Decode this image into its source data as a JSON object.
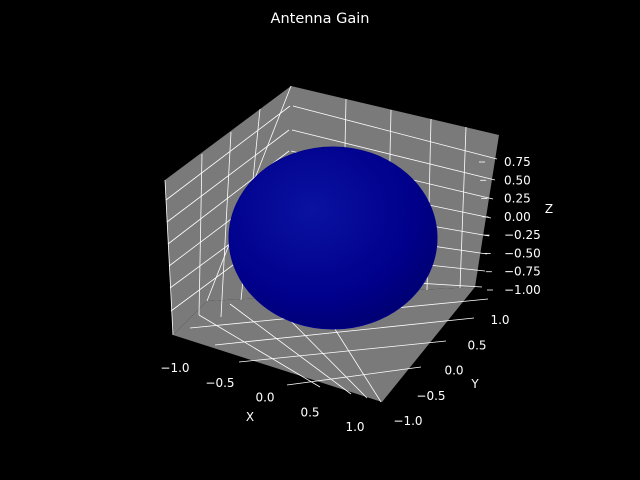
{
  "chart_data": {
    "type": "surface3d",
    "title": "Antenna Gain",
    "xlabel": "X",
    "ylabel": "Y",
    "zlabel": "Z",
    "xlim": [
      -1.0,
      1.0
    ],
    "ylim": [
      -1.0,
      1.0
    ],
    "zlim": [
      -1.0,
      0.75
    ],
    "x_ticks": [
      "−1.0",
      "−0.5",
      "0.0",
      "0.5",
      "1.0"
    ],
    "y_ticks": [
      "−1.0",
      "−0.5",
      "0.0",
      "0.5",
      "1.0"
    ],
    "z_ticks": [
      "−1.00",
      "−0.75",
      "−0.50",
      "−0.25",
      "0.00",
      "0.25",
      "0.50",
      "0.75"
    ],
    "surface": {
      "shape": "sphere",
      "radius": 1.0,
      "color": "#00008b"
    },
    "grid": true,
    "background": "#000000",
    "pane_color": "#7a7a7a",
    "grid_color": "#ffffff",
    "text_color": "#ffffff"
  }
}
